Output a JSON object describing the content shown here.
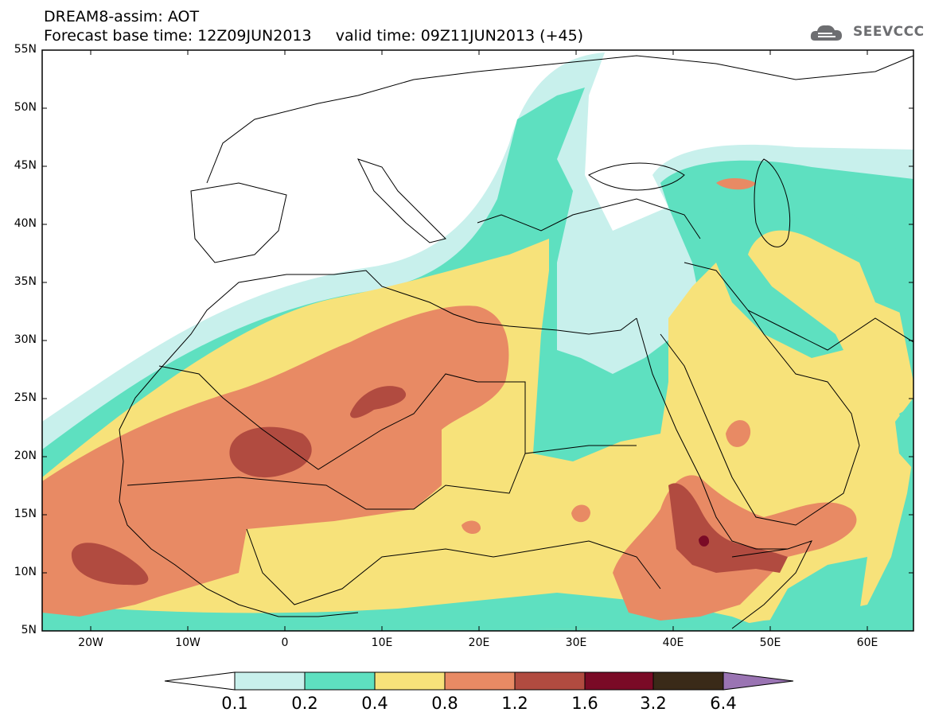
{
  "header": {
    "title": "DREAM8-assim: AOT",
    "subtitle": "Forecast base time: 12Z09JUN2013     valid time: 09Z11JUN2013 (+45)"
  },
  "logo": {
    "text": "SEEVCCC",
    "icon": "cloud-icon"
  },
  "map": {
    "lat_labels": [
      "55N",
      "50N",
      "45N",
      "40N",
      "35N",
      "30N",
      "25N",
      "20N",
      "15N",
      "10N",
      "5N"
    ],
    "lon_labels": [
      "20W",
      "10W",
      "0",
      "10E",
      "20E",
      "30E",
      "40E",
      "50E",
      "60E"
    ]
  },
  "legend": {
    "levels": [
      "0.1",
      "0.2",
      "0.4",
      "0.8",
      "1.2",
      "1.6",
      "3.2",
      "6.4"
    ],
    "colors": [
      "#ffffff",
      "#c8f0ec",
      "#5ee0c0",
      "#f7e27a",
      "#e88a64",
      "#b14b40",
      "#7a0a26",
      "#3a2a18",
      "#9a74b3"
    ]
  }
}
